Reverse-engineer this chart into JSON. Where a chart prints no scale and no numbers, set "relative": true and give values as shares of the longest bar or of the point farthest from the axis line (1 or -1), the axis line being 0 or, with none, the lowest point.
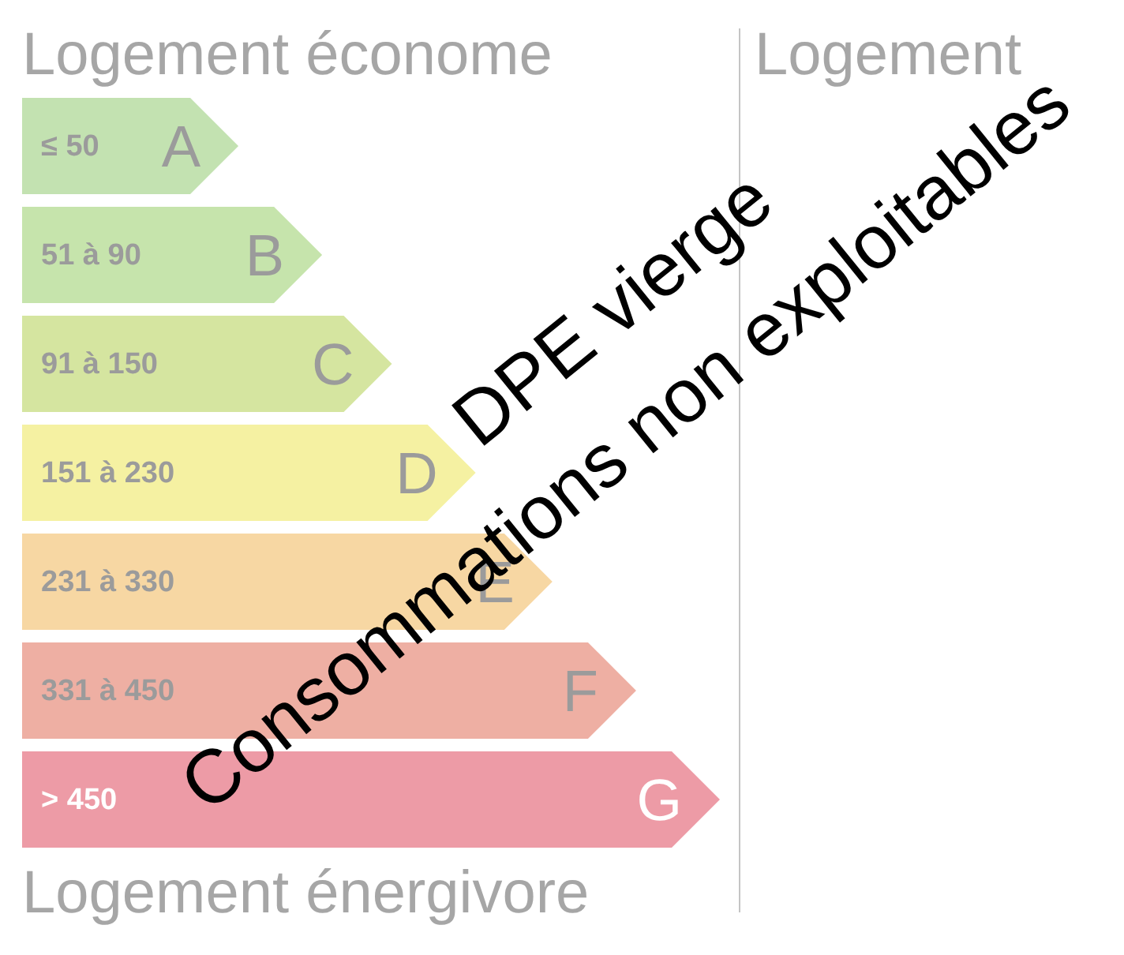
{
  "chart_data": {
    "type": "bar",
    "orientation": "horizontal",
    "relative": true,
    "categories": [
      "≤ 50",
      "51 à 90",
      "91 à 150",
      "151 à 230",
      "231 à 330",
      "331 à 450",
      "> 450"
    ],
    "values": [
      0.31,
      0.43,
      0.53,
      0.65,
      0.76,
      0.88,
      1
    ],
    "colors": [
      "#c3e2b1",
      "#c6e4ac",
      "#d5e5a0",
      "#f5f1a2",
      "#f7d7a3",
      "#eeafa3",
      "#ed9ba6"
    ],
    "annotations": [
      "Logement économe",
      "Logement énergivore",
      "Logement",
      "DPE vierge",
      "Consommations non exploitables",
      {
        "text": "A",
        "x": 0.31,
        "y": "≤ 50"
      },
      {
        "text": "B",
        "x": 0.43,
        "y": "51 à 90"
      },
      {
        "text": "C",
        "x": 0.53,
        "y": "91 à 150"
      },
      {
        "text": "D",
        "x": 0.65,
        "y": "151 à 230"
      },
      {
        "text": "E",
        "x": 0.76,
        "y": "231 à 330"
      },
      {
        "text": "F",
        "x": 0.88,
        "y": "331 à 450"
      },
      {
        "text": "G",
        "x": 1,
        "y": "> 450"
      }
    ]
  }
}
